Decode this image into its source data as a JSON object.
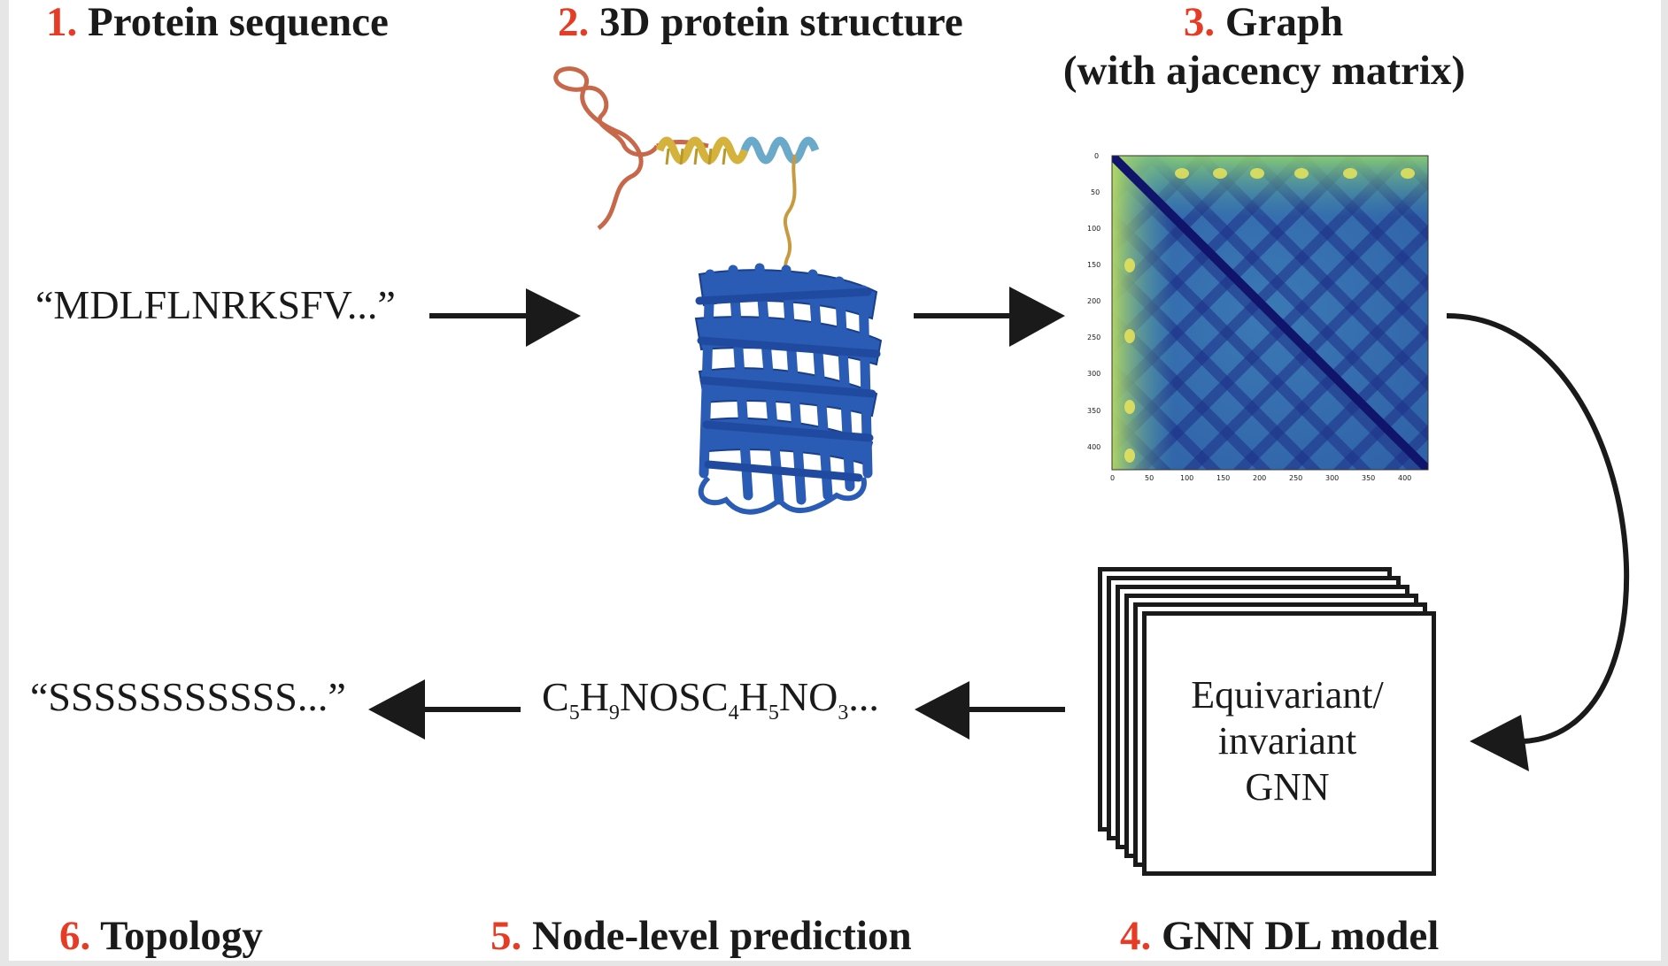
{
  "steps": {
    "s1": {
      "num": "1.",
      "label": "Protein sequence"
    },
    "s2": {
      "num": "2.",
      "label": "3D protein structure"
    },
    "s3": {
      "num": "3.",
      "label": "Graph",
      "sub": "(with ajacency matrix)"
    },
    "s4": {
      "num": "4.",
      "label": "GNN DL model"
    },
    "s5": {
      "num": "5.",
      "label": "Node-level prediction"
    },
    "s6": {
      "num": "6.",
      "label": "Topology"
    }
  },
  "sequence_input": "“MDLFLNRKSFV...”",
  "topology_output": "“SSSSSSSSSSS...”",
  "formula": {
    "parts": [
      "C",
      "5",
      "H",
      "9",
      "NOSC",
      "4",
      "H",
      "5",
      "NO",
      "3",
      "..."
    ]
  },
  "gnn_box": {
    "line1": "Equivariant/",
    "line2": "invariant",
    "line3": "GNN"
  },
  "matrix_axis": {
    "x_ticks": [
      "0",
      "50",
      "100",
      "150",
      "200",
      "250",
      "300",
      "350",
      "400"
    ],
    "y_ticks": [
      "0",
      "50",
      "100",
      "150",
      "200",
      "250",
      "300",
      "350",
      "400"
    ]
  },
  "colors": {
    "accent_number": "#e63b25",
    "helix_blue": "#2a5bb5",
    "arrow": "#1a1a1a"
  }
}
